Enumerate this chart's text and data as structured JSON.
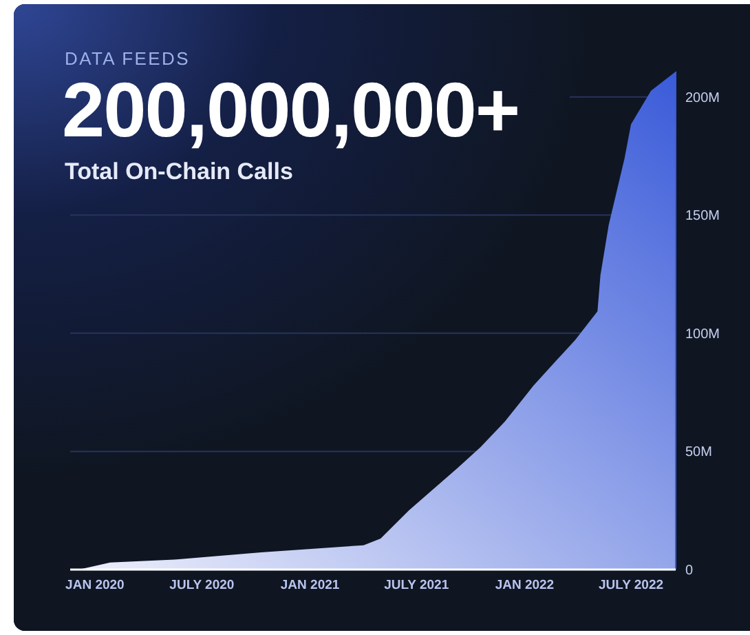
{
  "chart_data": {
    "type": "area",
    "title": "200,000,000+",
    "subtitle": "Total On-Chain Calls",
    "annotations": [
      "DATA FEEDS"
    ],
    "x": [
      "2019-11-20",
      "2019-12-10",
      "2020-01-27",
      "2020-05-15",
      "2020-10-10",
      "2021-04-02",
      "2021-05-01",
      "2021-06-18",
      "2021-09-10",
      "2021-10-18",
      "2021-11-28",
      "2022-01-16",
      "2022-02-26",
      "2022-03-28",
      "2022-05-05",
      "2022-05-10",
      "2022-05-24",
      "2022-06-20",
      "2022-07-01",
      "2022-08-04",
      "2022-09-15"
    ],
    "series": [
      {
        "color": "#3a5bd9",
        "values": [
          0,
          0.3,
          3,
          4.2,
          7.3,
          10.3,
          13.1,
          25,
          43.2,
          51.8,
          62.5,
          77.8,
          89,
          97.1,
          109.3,
          124.6,
          145.7,
          174,
          188.4,
          202.6,
          210.7
        ]
      }
    ],
    "xlim": [
      "2019-11-20",
      "2022-09-15"
    ],
    "xticks": [
      {
        "value": "2020-01-01",
        "label": "JAN 2020"
      },
      {
        "value": "2020-07-01",
        "label": "JULY 2020"
      },
      {
        "value": "2021-01-01",
        "label": "JAN 2021"
      },
      {
        "value": "2021-07-01",
        "label": "JULY 2021"
      },
      {
        "value": "2022-01-01",
        "label": "JAN 2022"
      },
      {
        "value": "2022-07-01",
        "label": "JULY 2022"
      }
    ],
    "ylim": [
      0,
      210.7
    ],
    "yticks": [
      0,
      {
        "value": 50,
        "label": "50M"
      },
      {
        "value": 100,
        "label": "100M"
      },
      {
        "value": 150,
        "label": "150M"
      },
      {
        "value": 200,
        "label": "200M"
      }
    ],
    "grid": "y"
  }
}
